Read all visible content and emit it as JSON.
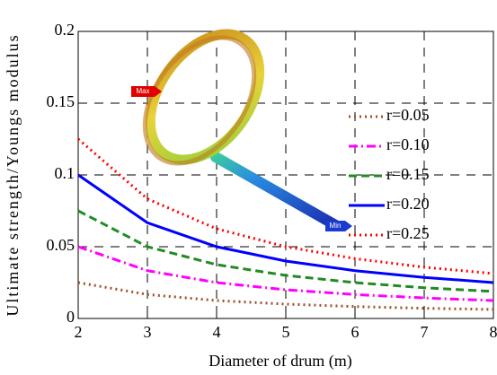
{
  "chart_data": {
    "type": "line",
    "x_label": "Diameter of drum (m)",
    "y_label": "Ultimate strength/Youngs modulus",
    "x": [
      2,
      3,
      4,
      5,
      6,
      7,
      8
    ],
    "xlim": [
      2,
      8
    ],
    "xticks": [
      2,
      3,
      4,
      5,
      6,
      7,
      8
    ],
    "ylim": [
      0,
      0.2
    ],
    "yticks": [
      0,
      0.05,
      0.1,
      0.15,
      0.2
    ],
    "grid": true,
    "legend": "right",
    "annotations": [
      "Max",
      "Min"
    ],
    "series": [
      {
        "name": "r=0.05",
        "color": "#a0522d",
        "dash": "dotted",
        "values": [
          0.025,
          0.0167,
          0.0125,
          0.01,
          0.0083,
          0.0071,
          0.0063
        ]
      },
      {
        "name": "r=0.10",
        "color": "#ff00ff",
        "dash": "dashdot",
        "values": [
          0.05,
          0.0333,
          0.025,
          0.02,
          0.0167,
          0.0143,
          0.0125
        ]
      },
      {
        "name": "r=0.15",
        "color": "#228b22",
        "dash": "dashed",
        "values": [
          0.075,
          0.05,
          0.0375,
          0.03,
          0.025,
          0.0214,
          0.0188
        ]
      },
      {
        "name": "r=0.20",
        "color": "#0000ff",
        "dash": "solid",
        "values": [
          0.1,
          0.0667,
          0.05,
          0.04,
          0.0333,
          0.0286,
          0.025
        ]
      },
      {
        "name": "r=0.25",
        "color": "#ff0000",
        "dash": "dotted",
        "values": [
          0.125,
          0.0833,
          0.0625,
          0.05,
          0.0417,
          0.0357,
          0.0313
        ]
      }
    ]
  }
}
